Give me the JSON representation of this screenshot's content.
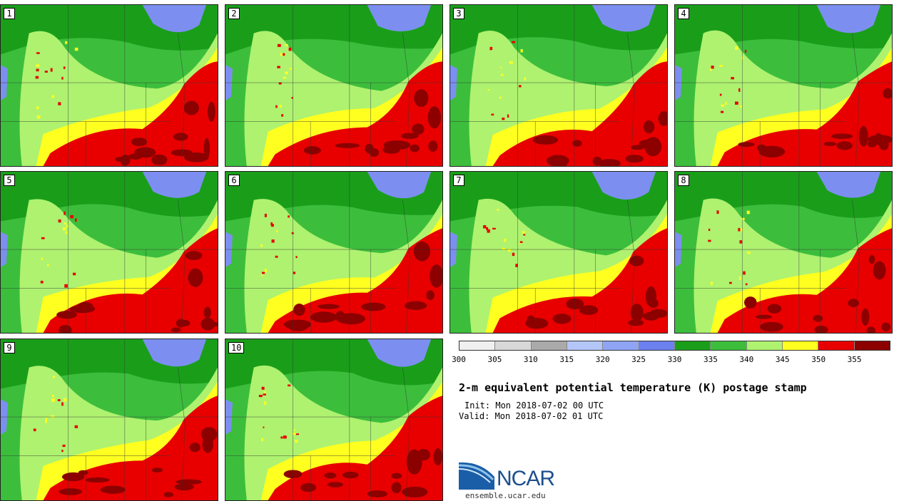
{
  "panels": [
    {
      "label": "1"
    },
    {
      "label": "2"
    },
    {
      "label": "3"
    },
    {
      "label": "4"
    },
    {
      "label": "5"
    },
    {
      "label": "6"
    },
    {
      "label": "7"
    },
    {
      "label": "8"
    },
    {
      "label": "9"
    },
    {
      "label": "10"
    }
  ],
  "colorbar": {
    "colors": [
      "#f0f0f0",
      "#d8d8d8",
      "#aaaaaa",
      "#b4c6f8",
      "#8fa4f4",
      "#6c80ee",
      "#1a9e1a",
      "#3cbe3c",
      "#aef270",
      "#ffff20",
      "#e80000",
      "#8c0000"
    ],
    "ticks": [
      "300",
      "305",
      "310",
      "315",
      "320",
      "325",
      "330",
      "335",
      "340",
      "345",
      "350",
      "355"
    ]
  },
  "title": "2-m equivalent potential temperature (K) postage stamp",
  "init": "Init: Mon 2018-07-02 00 UTC",
  "valid": "Valid: Mon 2018-07-02 01 UTC",
  "logo": {
    "name": "NCAR",
    "url": "ensemble.ucar.edu"
  }
}
